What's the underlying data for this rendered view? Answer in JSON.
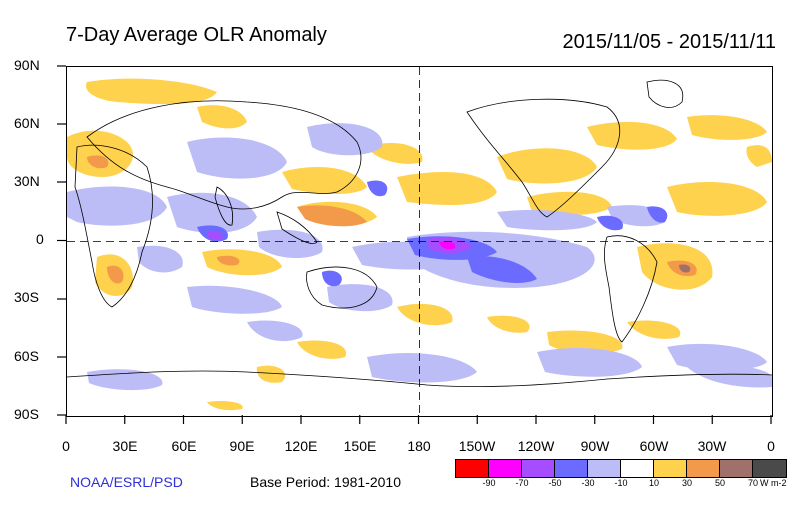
{
  "title": "7-Day Average OLR Anomaly",
  "date_range": "2015/11/05 - 2015/11/11",
  "lat_labels": [
    "90N",
    "60N",
    "30N",
    "0",
    "30S",
    "60S",
    "90S"
  ],
  "lon_labels": [
    "0",
    "30E",
    "60E",
    "90E",
    "120E",
    "150E",
    "180",
    "150W",
    "120W",
    "90W",
    "60W",
    "30W",
    "0"
  ],
  "source": "NOAA/ESRL/PSD",
  "base_period": "Base Period: 1981-2010",
  "units": "W m-2",
  "colorbar": {
    "colors": [
      "#ff0000",
      "#ff00ff",
      "#a64dff",
      "#6b6bff",
      "#bcbcf7",
      "#ffffff",
      "#ffd24d",
      "#f2994a",
      "#a0706a",
      "#4a4a4a"
    ],
    "labels": [
      "-90",
      "-70",
      "-50",
      "-30",
      "-10",
      "10",
      "30",
      "50",
      "70"
    ]
  }
}
